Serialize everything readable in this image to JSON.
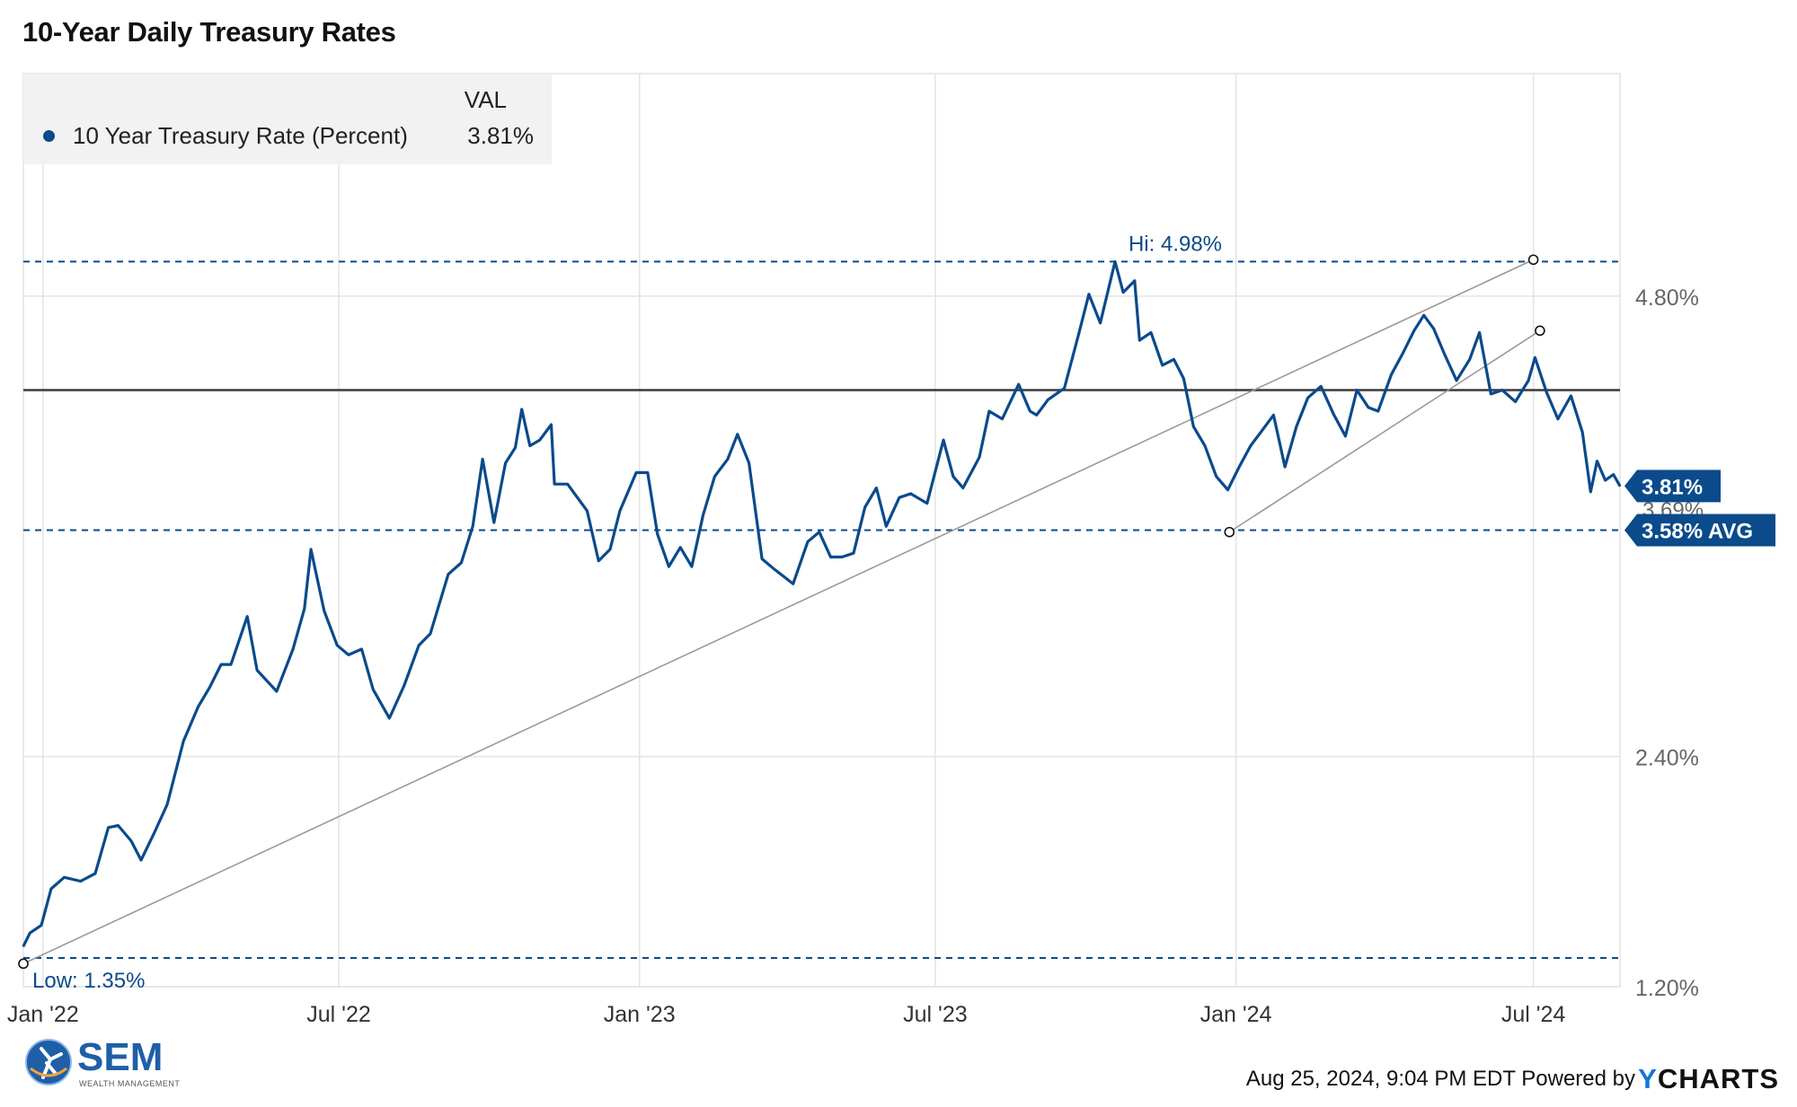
{
  "title": "10-Year Daily Treasury Rates",
  "legend": {
    "header": "VAL",
    "series_name": "10 Year Treasury Rate (Percent)",
    "series_value": "3.81%"
  },
  "colors": {
    "series": "#0b4a8b",
    "grid": "#e3e3e3",
    "axis_text": "#666666",
    "trend": "#9a9a9a",
    "ref_line": "#3a3a3a"
  },
  "footer": {
    "brand_name": "SEM",
    "brand_sub": "WEALTH MANAGEMENT",
    "timestamp": "Aug 25, 2024, 9:04 PM EDT Powered by",
    "powered_brand": "CHARTS",
    "powered_brand_initial": "Y"
  },
  "chart_data": {
    "type": "line",
    "title": "10-Year Daily Treasury Rates",
    "xlabel": "",
    "ylabel": "",
    "grid": true,
    "legend_placement": "top-left",
    "x_range": [
      "2021-12-20",
      "2024-08-23"
    ],
    "ylim": [
      1.2,
      5.96
    ],
    "y_ticks": [
      {
        "value": 1.2,
        "label": "1.20%"
      },
      {
        "value": 2.4,
        "label": "2.40%"
      },
      {
        "value": 4.8,
        "label": "4.80%"
      }
    ],
    "x_ticks": [
      {
        "date": "2022-01-01",
        "label": "Jan '22"
      },
      {
        "date": "2022-07-01",
        "label": "Jul '22"
      },
      {
        "date": "2023-01-01",
        "label": "Jan '23"
      },
      {
        "date": "2023-07-01",
        "label": "Jul '23"
      },
      {
        "date": "2024-01-01",
        "label": "Jan '24"
      },
      {
        "date": "2024-07-01",
        "label": "Jul '24"
      }
    ],
    "series": [
      {
        "name": "10 Year Treasury Rate (Percent)",
        "last_value_label": "3.81%",
        "points": [
          [
            "2021-12-20",
            1.41
          ],
          [
            "2021-12-24",
            1.48
          ],
          [
            "2021-12-31",
            1.52
          ],
          [
            "2022-01-06",
            1.71
          ],
          [
            "2022-01-14",
            1.77
          ],
          [
            "2022-01-24",
            1.75
          ],
          [
            "2022-02-02",
            1.79
          ],
          [
            "2022-02-10",
            2.03
          ],
          [
            "2022-02-16",
            2.04
          ],
          [
            "2022-02-24",
            1.96
          ],
          [
            "2022-03-02",
            1.86
          ],
          [
            "2022-03-10",
            2.0
          ],
          [
            "2022-03-18",
            2.15
          ],
          [
            "2022-03-28",
            2.48
          ],
          [
            "2022-04-06",
            2.66
          ],
          [
            "2022-04-13",
            2.76
          ],
          [
            "2022-04-20",
            2.88
          ],
          [
            "2022-04-26",
            2.88
          ],
          [
            "2022-05-06",
            3.13
          ],
          [
            "2022-05-12",
            2.85
          ],
          [
            "2022-05-24",
            2.74
          ],
          [
            "2022-06-03",
            2.96
          ],
          [
            "2022-06-10",
            3.17
          ],
          [
            "2022-06-14",
            3.48
          ],
          [
            "2022-06-22",
            3.16
          ],
          [
            "2022-06-30",
            2.98
          ],
          [
            "2022-07-07",
            2.93
          ],
          [
            "2022-07-15",
            2.96
          ],
          [
            "2022-07-22",
            2.75
          ],
          [
            "2022-08-01",
            2.6
          ],
          [
            "2022-08-10",
            2.77
          ],
          [
            "2022-08-19",
            2.98
          ],
          [
            "2022-08-26",
            3.04
          ],
          [
            "2022-09-06",
            3.35
          ],
          [
            "2022-09-14",
            3.41
          ],
          [
            "2022-09-21",
            3.6
          ],
          [
            "2022-09-27",
            3.95
          ],
          [
            "2022-10-04",
            3.62
          ],
          [
            "2022-10-11",
            3.93
          ],
          [
            "2022-10-17",
            4.01
          ],
          [
            "2022-10-21",
            4.21
          ],
          [
            "2022-10-26",
            4.02
          ],
          [
            "2022-11-01",
            4.05
          ],
          [
            "2022-11-08",
            4.13
          ],
          [
            "2022-11-10",
            3.82
          ],
          [
            "2022-11-18",
            3.82
          ],
          [
            "2022-11-30",
            3.68
          ],
          [
            "2022-12-07",
            3.42
          ],
          [
            "2022-12-14",
            3.48
          ],
          [
            "2022-12-20",
            3.68
          ],
          [
            "2022-12-30",
            3.88
          ],
          [
            "2023-01-06",
            3.88
          ],
          [
            "2023-01-12",
            3.56
          ],
          [
            "2023-01-19",
            3.39
          ],
          [
            "2023-01-26",
            3.49
          ],
          [
            "2023-02-02",
            3.39
          ],
          [
            "2023-02-09",
            3.66
          ],
          [
            "2023-02-16",
            3.86
          ],
          [
            "2023-02-24",
            3.95
          ],
          [
            "2023-03-02",
            4.08
          ],
          [
            "2023-03-09",
            3.93
          ],
          [
            "2023-03-17",
            3.43
          ],
          [
            "2023-03-24",
            3.38
          ],
          [
            "2023-04-05",
            3.3
          ],
          [
            "2023-04-14",
            3.52
          ],
          [
            "2023-04-21",
            3.57
          ],
          [
            "2023-04-28",
            3.44
          ],
          [
            "2023-05-05",
            3.44
          ],
          [
            "2023-05-12",
            3.46
          ],
          [
            "2023-05-19",
            3.7
          ],
          [
            "2023-05-26",
            3.8
          ],
          [
            "2023-06-01",
            3.6
          ],
          [
            "2023-06-09",
            3.75
          ],
          [
            "2023-06-16",
            3.77
          ],
          [
            "2023-06-26",
            3.72
          ],
          [
            "2023-07-06",
            4.05
          ],
          [
            "2023-07-12",
            3.86
          ],
          [
            "2023-07-18",
            3.8
          ],
          [
            "2023-07-28",
            3.96
          ],
          [
            "2023-08-03",
            4.2
          ],
          [
            "2023-08-11",
            4.16
          ],
          [
            "2023-08-21",
            4.34
          ],
          [
            "2023-08-28",
            4.2
          ],
          [
            "2023-09-01",
            4.18
          ],
          [
            "2023-09-08",
            4.26
          ],
          [
            "2023-09-18",
            4.32
          ],
          [
            "2023-09-27",
            4.61
          ],
          [
            "2023-10-03",
            4.81
          ],
          [
            "2023-10-10",
            4.66
          ],
          [
            "2023-10-19",
            4.98
          ],
          [
            "2023-10-24",
            4.82
          ],
          [
            "2023-10-31",
            4.88
          ],
          [
            "2023-11-03",
            4.57
          ],
          [
            "2023-11-10",
            4.61
          ],
          [
            "2023-11-17",
            4.44
          ],
          [
            "2023-11-24",
            4.47
          ],
          [
            "2023-11-30",
            4.37
          ],
          [
            "2023-12-06",
            4.12
          ],
          [
            "2023-12-13",
            4.02
          ],
          [
            "2023-12-20",
            3.86
          ],
          [
            "2023-12-27",
            3.79
          ],
          [
            "2024-01-03",
            3.91
          ],
          [
            "2024-01-10",
            4.02
          ],
          [
            "2024-01-17",
            4.1
          ],
          [
            "2024-01-24",
            4.18
          ],
          [
            "2024-01-31",
            3.91
          ],
          [
            "2024-02-07",
            4.12
          ],
          [
            "2024-02-14",
            4.27
          ],
          [
            "2024-02-22",
            4.33
          ],
          [
            "2024-03-01",
            4.18
          ],
          [
            "2024-03-08",
            4.07
          ],
          [
            "2024-03-15",
            4.31
          ],
          [
            "2024-03-22",
            4.22
          ],
          [
            "2024-03-28",
            4.2
          ],
          [
            "2024-04-05",
            4.39
          ],
          [
            "2024-04-12",
            4.5
          ],
          [
            "2024-04-19",
            4.62
          ],
          [
            "2024-04-25",
            4.7
          ],
          [
            "2024-05-01",
            4.63
          ],
          [
            "2024-05-08",
            4.49
          ],
          [
            "2024-05-15",
            4.36
          ],
          [
            "2024-05-23",
            4.47
          ],
          [
            "2024-05-29",
            4.61
          ],
          [
            "2024-06-05",
            4.29
          ],
          [
            "2024-06-12",
            4.31
          ],
          [
            "2024-06-20",
            4.25
          ],
          [
            "2024-06-28",
            4.36
          ],
          [
            "2024-07-02",
            4.48
          ],
          [
            "2024-07-09",
            4.3
          ],
          [
            "2024-07-16",
            4.16
          ],
          [
            "2024-07-24",
            4.28
          ],
          [
            "2024-07-31",
            4.09
          ],
          [
            "2024-08-05",
            3.78
          ],
          [
            "2024-08-09",
            3.94
          ],
          [
            "2024-08-14",
            3.84
          ],
          [
            "2024-08-19",
            3.87
          ],
          [
            "2024-08-23",
            3.81
          ]
        ]
      }
    ],
    "reference_lines": [
      {
        "value": 4.98,
        "style": "dashed",
        "label": "Hi: 4.98%"
      },
      {
        "value": 1.35,
        "style": "dashed",
        "label": "Low: 1.35%"
      },
      {
        "value": 3.58,
        "style": "dashed",
        "label": "3.58% AVG"
      },
      {
        "value": 4.31,
        "style": "solid",
        "label": ""
      }
    ],
    "trend_lines": [
      {
        "from": [
          "2021-12-20",
          1.32
        ],
        "to": [
          "2024-07-01",
          4.99
        ]
      },
      {
        "from": [
          "2023-12-28",
          3.57
        ],
        "to": [
          "2024-07-05",
          4.62
        ]
      }
    ],
    "markers": {
      "last_value": {
        "label": "3.81%",
        "value": 3.81
      },
      "average": {
        "label": "3.58% AVG",
        "value": 3.58
      },
      "hidden_label": "3.69%"
    }
  }
}
